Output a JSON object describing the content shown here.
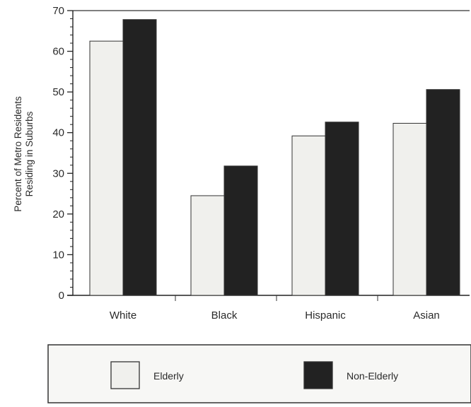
{
  "chart_data": {
    "type": "bar",
    "title": "",
    "xlabel": "",
    "ylabel_lines": [
      "Percent of Metro Residents",
      "Residing in Suburbs"
    ],
    "categories": [
      "White",
      "Black",
      "Hispanic",
      "Asian"
    ],
    "series": [
      {
        "name": "Elderly",
        "color": "#f0f0ed",
        "values": [
          62.5,
          24.5,
          39.2,
          42.3
        ]
      },
      {
        "name": "Non-Elderly",
        "color": "#222222",
        "values": [
          67.8,
          31.8,
          42.6,
          50.6
        ]
      }
    ],
    "ylim": [
      0,
      70
    ],
    "yticks": [
      "0",
      "10",
      "20",
      "30",
      "40",
      "50",
      "60",
      "70"
    ],
    "grid": false,
    "legend_position": "bottom"
  }
}
